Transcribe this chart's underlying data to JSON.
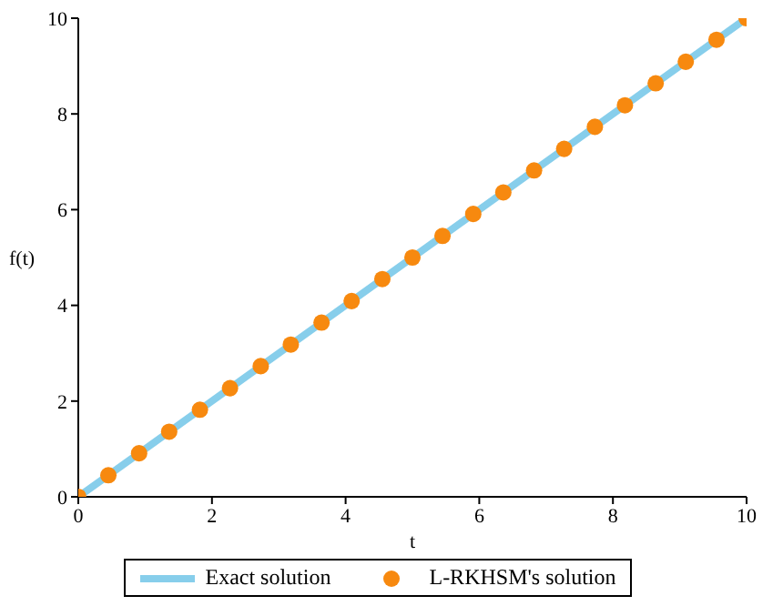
{
  "chart_data": {
    "type": "line",
    "xlabel": "t",
    "ylabel": "f(t)",
    "xlim": [
      0,
      10
    ],
    "ylim": [
      0,
      10
    ],
    "xticks": [
      0,
      2,
      4,
      6,
      8,
      10
    ],
    "yticks": [
      0,
      2,
      4,
      6,
      8,
      10
    ],
    "grid": false,
    "legend": "bottom",
    "series": [
      {
        "name": "Exact solution",
        "color": "#87ceeb",
        "x": [
          0,
          10
        ],
        "values": [
          0,
          10
        ],
        "marker": "none",
        "line_style": "solid"
      },
      {
        "name": "L-RKHSM's solution",
        "type": "scatter",
        "color": "#f7890f",
        "x": [
          0,
          0.45,
          0.91,
          1.36,
          1.82,
          2.27,
          2.73,
          3.18,
          3.64,
          4.09,
          4.55,
          5,
          5.45,
          5.91,
          6.36,
          6.82,
          7.27,
          7.73,
          8.18,
          8.64,
          9.09,
          9.55,
          10
        ],
        "values": [
          0,
          0.45,
          0.91,
          1.36,
          1.82,
          2.27,
          2.73,
          3.18,
          3.64,
          4.09,
          4.55,
          5,
          5.45,
          5.91,
          6.36,
          6.82,
          7.27,
          7.73,
          8.18,
          8.64,
          9.09,
          9.55,
          10
        ],
        "marker": "circle"
      }
    ]
  }
}
